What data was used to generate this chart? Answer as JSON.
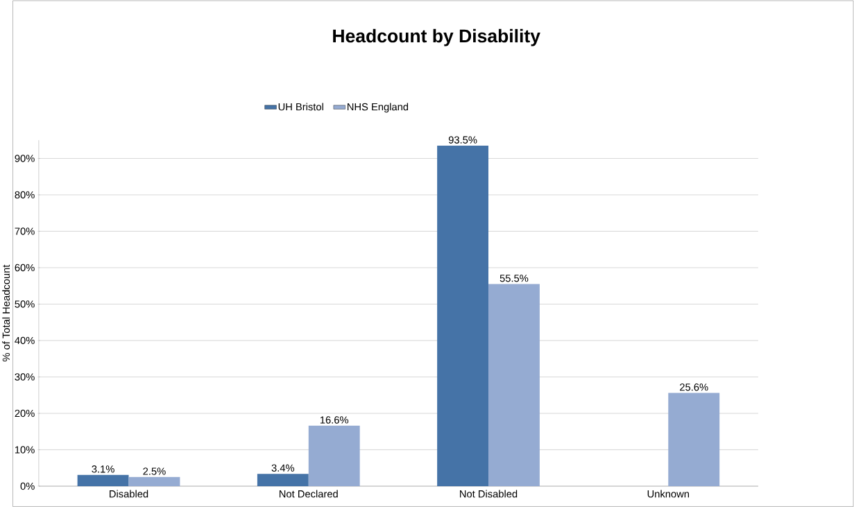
{
  "chart_data": {
    "type": "bar",
    "title": "Headcount by Disability",
    "ylabel": "% of Total Headcount",
    "categories": [
      "Disabled",
      "Not Declared",
      "Not Disabled",
      "Unknown"
    ],
    "series": [
      {
        "name": "UH Bristol",
        "color": "#4573a7",
        "values": [
          3.1,
          3.4,
          93.5,
          null
        ],
        "value_labels": [
          "3.1%",
          "3.4%",
          "93.5%",
          null
        ]
      },
      {
        "name": "NHS England",
        "color": "#95abd2",
        "values": [
          2.5,
          16.6,
          55.5,
          25.6
        ],
        "value_labels": [
          "2.5%",
          "16.6%",
          "55.5%",
          "25.6%"
        ]
      }
    ],
    "ylim": [
      0,
      95
    ],
    "yticks": [
      {
        "value": 0,
        "label": "0%"
      },
      {
        "value": 10,
        "label": "10%"
      },
      {
        "value": 20,
        "label": "20%"
      },
      {
        "value": 30,
        "label": "30%"
      },
      {
        "value": 40,
        "label": "40%"
      },
      {
        "value": 50,
        "label": "50%"
      },
      {
        "value": 60,
        "label": "60%"
      },
      {
        "value": 70,
        "label": "70%"
      },
      {
        "value": 80,
        "label": "80%"
      },
      {
        "value": 90,
        "label": "90%"
      }
    ],
    "grid": "y",
    "legend": "top"
  }
}
